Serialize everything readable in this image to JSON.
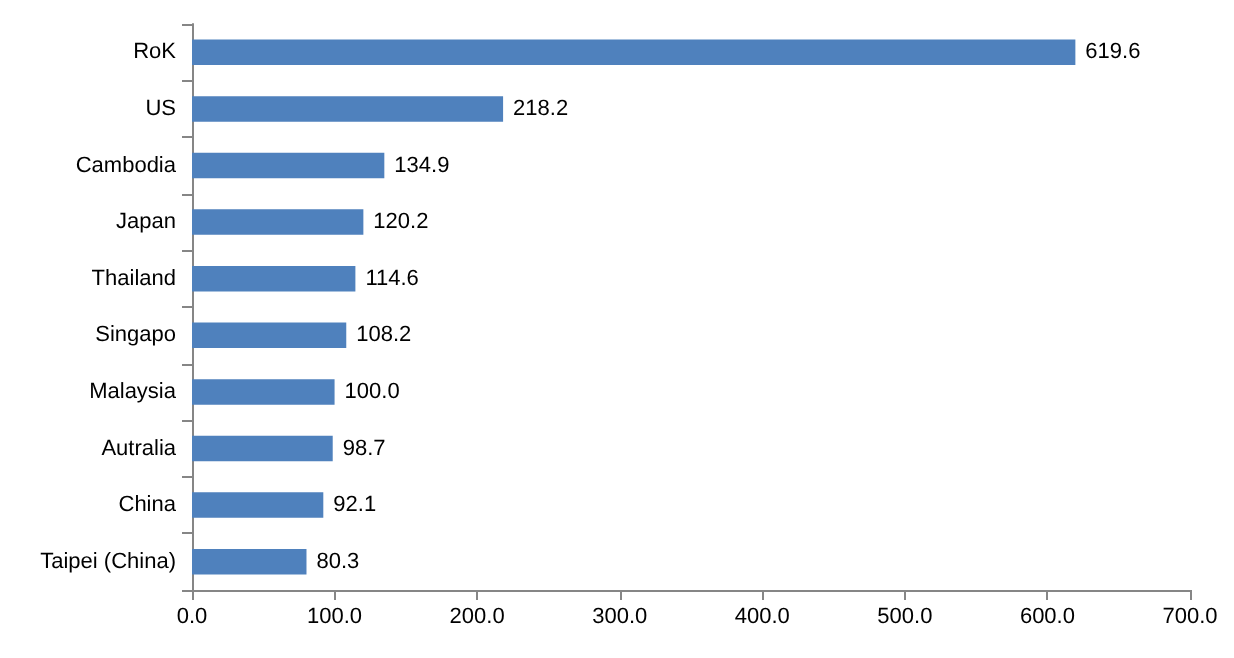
{
  "chart_data": {
    "type": "bar",
    "orientation": "horizontal",
    "categories": [
      "RoK",
      "US",
      "Cambodia",
      "Japan",
      "Thailand",
      "Singapo",
      "Malaysia",
      "Autralia",
      "China",
      "Taipei (China)"
    ],
    "values": [
      619.6,
      218.2,
      134.9,
      120.2,
      114.6,
      108.2,
      100.0,
      98.7,
      92.1,
      80.3
    ],
    "value_labels": [
      "619.6",
      "218.2",
      "134.9",
      "120.2",
      "114.6",
      "108.2",
      "100.0",
      "98.7",
      "92.1",
      "80.3"
    ],
    "color": "#4f81bd",
    "xlim": [
      0,
      700
    ],
    "xticks": [
      {
        "value": 0,
        "label": "0.0"
      },
      {
        "value": 100,
        "label": "100.0"
      },
      {
        "value": 200,
        "label": "200.0"
      },
      {
        "value": 300,
        "label": "300.0"
      },
      {
        "value": 400,
        "label": "400.0"
      },
      {
        "value": 500,
        "label": "500.0"
      },
      {
        "value": 600,
        "label": "600.0"
      },
      {
        "value": 700,
        "label": "700.0"
      }
    ],
    "grid": false
  }
}
